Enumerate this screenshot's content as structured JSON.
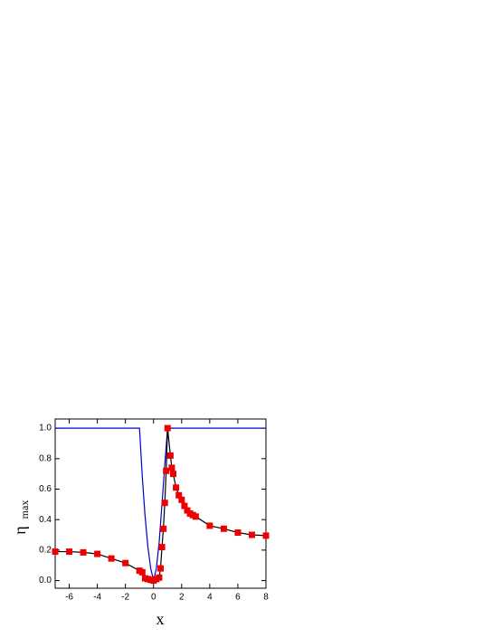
{
  "chart_data": {
    "type": "line",
    "x_label": "x",
    "y_label": {
      "main": "η",
      "sub": "max"
    },
    "xlim": [
      -7,
      8
    ],
    "xticks": [
      -6,
      -4,
      -2,
      0,
      2,
      4,
      6,
      8
    ],
    "ylim": [
      -0.05,
      1.06
    ],
    "yticks": [
      {
        "value": 0,
        "label": "0.0"
      },
      0.2,
      0.4,
      0.6,
      0.8,
      {
        "value": 1,
        "label": "1.0"
      }
    ],
    "series": [
      {
        "color": "#0000cc",
        "markers": false,
        "x": [
          -7,
          -1,
          -0.8,
          -0.6,
          -0.4,
          -0.2,
          0,
          0.2,
          0.4,
          0.6,
          0.8,
          1,
          8
        ],
        "values": [
          1,
          1,
          0.68,
          0.42,
          0.22,
          0.08,
          0,
          0.08,
          0.25,
          0.5,
          0.76,
          1,
          1
        ]
      },
      {
        "color": "#000000",
        "marker_color": "#ee0000",
        "markers": true,
        "x": [
          -7,
          -6,
          -5,
          -4,
          -3,
          -2,
          -1,
          -0.8,
          -0.6,
          -0.4,
          -0.2,
          0,
          0.2,
          0.4,
          0.5,
          0.6,
          0.7,
          0.8,
          0.9,
          1.0,
          1.2,
          1.3,
          1.4,
          1.6,
          1.8,
          2.0,
          2.2,
          2.4,
          2.6,
          2.8,
          3.0,
          4,
          5,
          6,
          7,
          8
        ],
        "values": [
          0.19,
          0.19,
          0.185,
          0.175,
          0.145,
          0.115,
          0.065,
          0.055,
          0.015,
          0.01,
          0.005,
          0.0,
          0.01,
          0.02,
          0.08,
          0.22,
          0.34,
          0.51,
          0.72,
          1.0,
          0.82,
          0.74,
          0.7,
          0.61,
          0.56,
          0.53,
          0.49,
          0.46,
          0.44,
          0.43,
          0.42,
          0.36,
          0.34,
          0.315,
          0.3,
          0.295
        ]
      }
    ]
  }
}
